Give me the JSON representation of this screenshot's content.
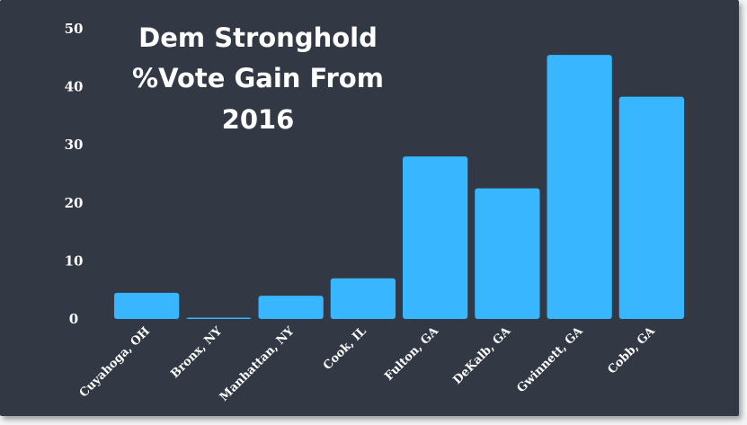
{
  "chart_data": {
    "type": "bar",
    "title_lines": [
      "Dem Stronghold",
      "%Vote Gain From",
      "2016"
    ],
    "categories": [
      "Cuyahoga, OH",
      "Bronx, NY",
      "Manhattan, NY",
      "Cook, IL",
      "Fulton, GA",
      "DeKalb, GA",
      "Gwinnett, GA",
      "Cobb, GA"
    ],
    "values": [
      4.5,
      0.2,
      4.0,
      7.0,
      28.0,
      22.5,
      45.5,
      38.3
    ],
    "yticks": [
      0,
      10,
      20,
      30,
      40,
      50
    ],
    "ylim": [
      0,
      50
    ],
    "xlabel": "",
    "ylabel": "",
    "grid": false,
    "legend": "none",
    "colors": {
      "bar": "#38b6ff",
      "background": "#323844",
      "text": "#ffffff"
    }
  }
}
